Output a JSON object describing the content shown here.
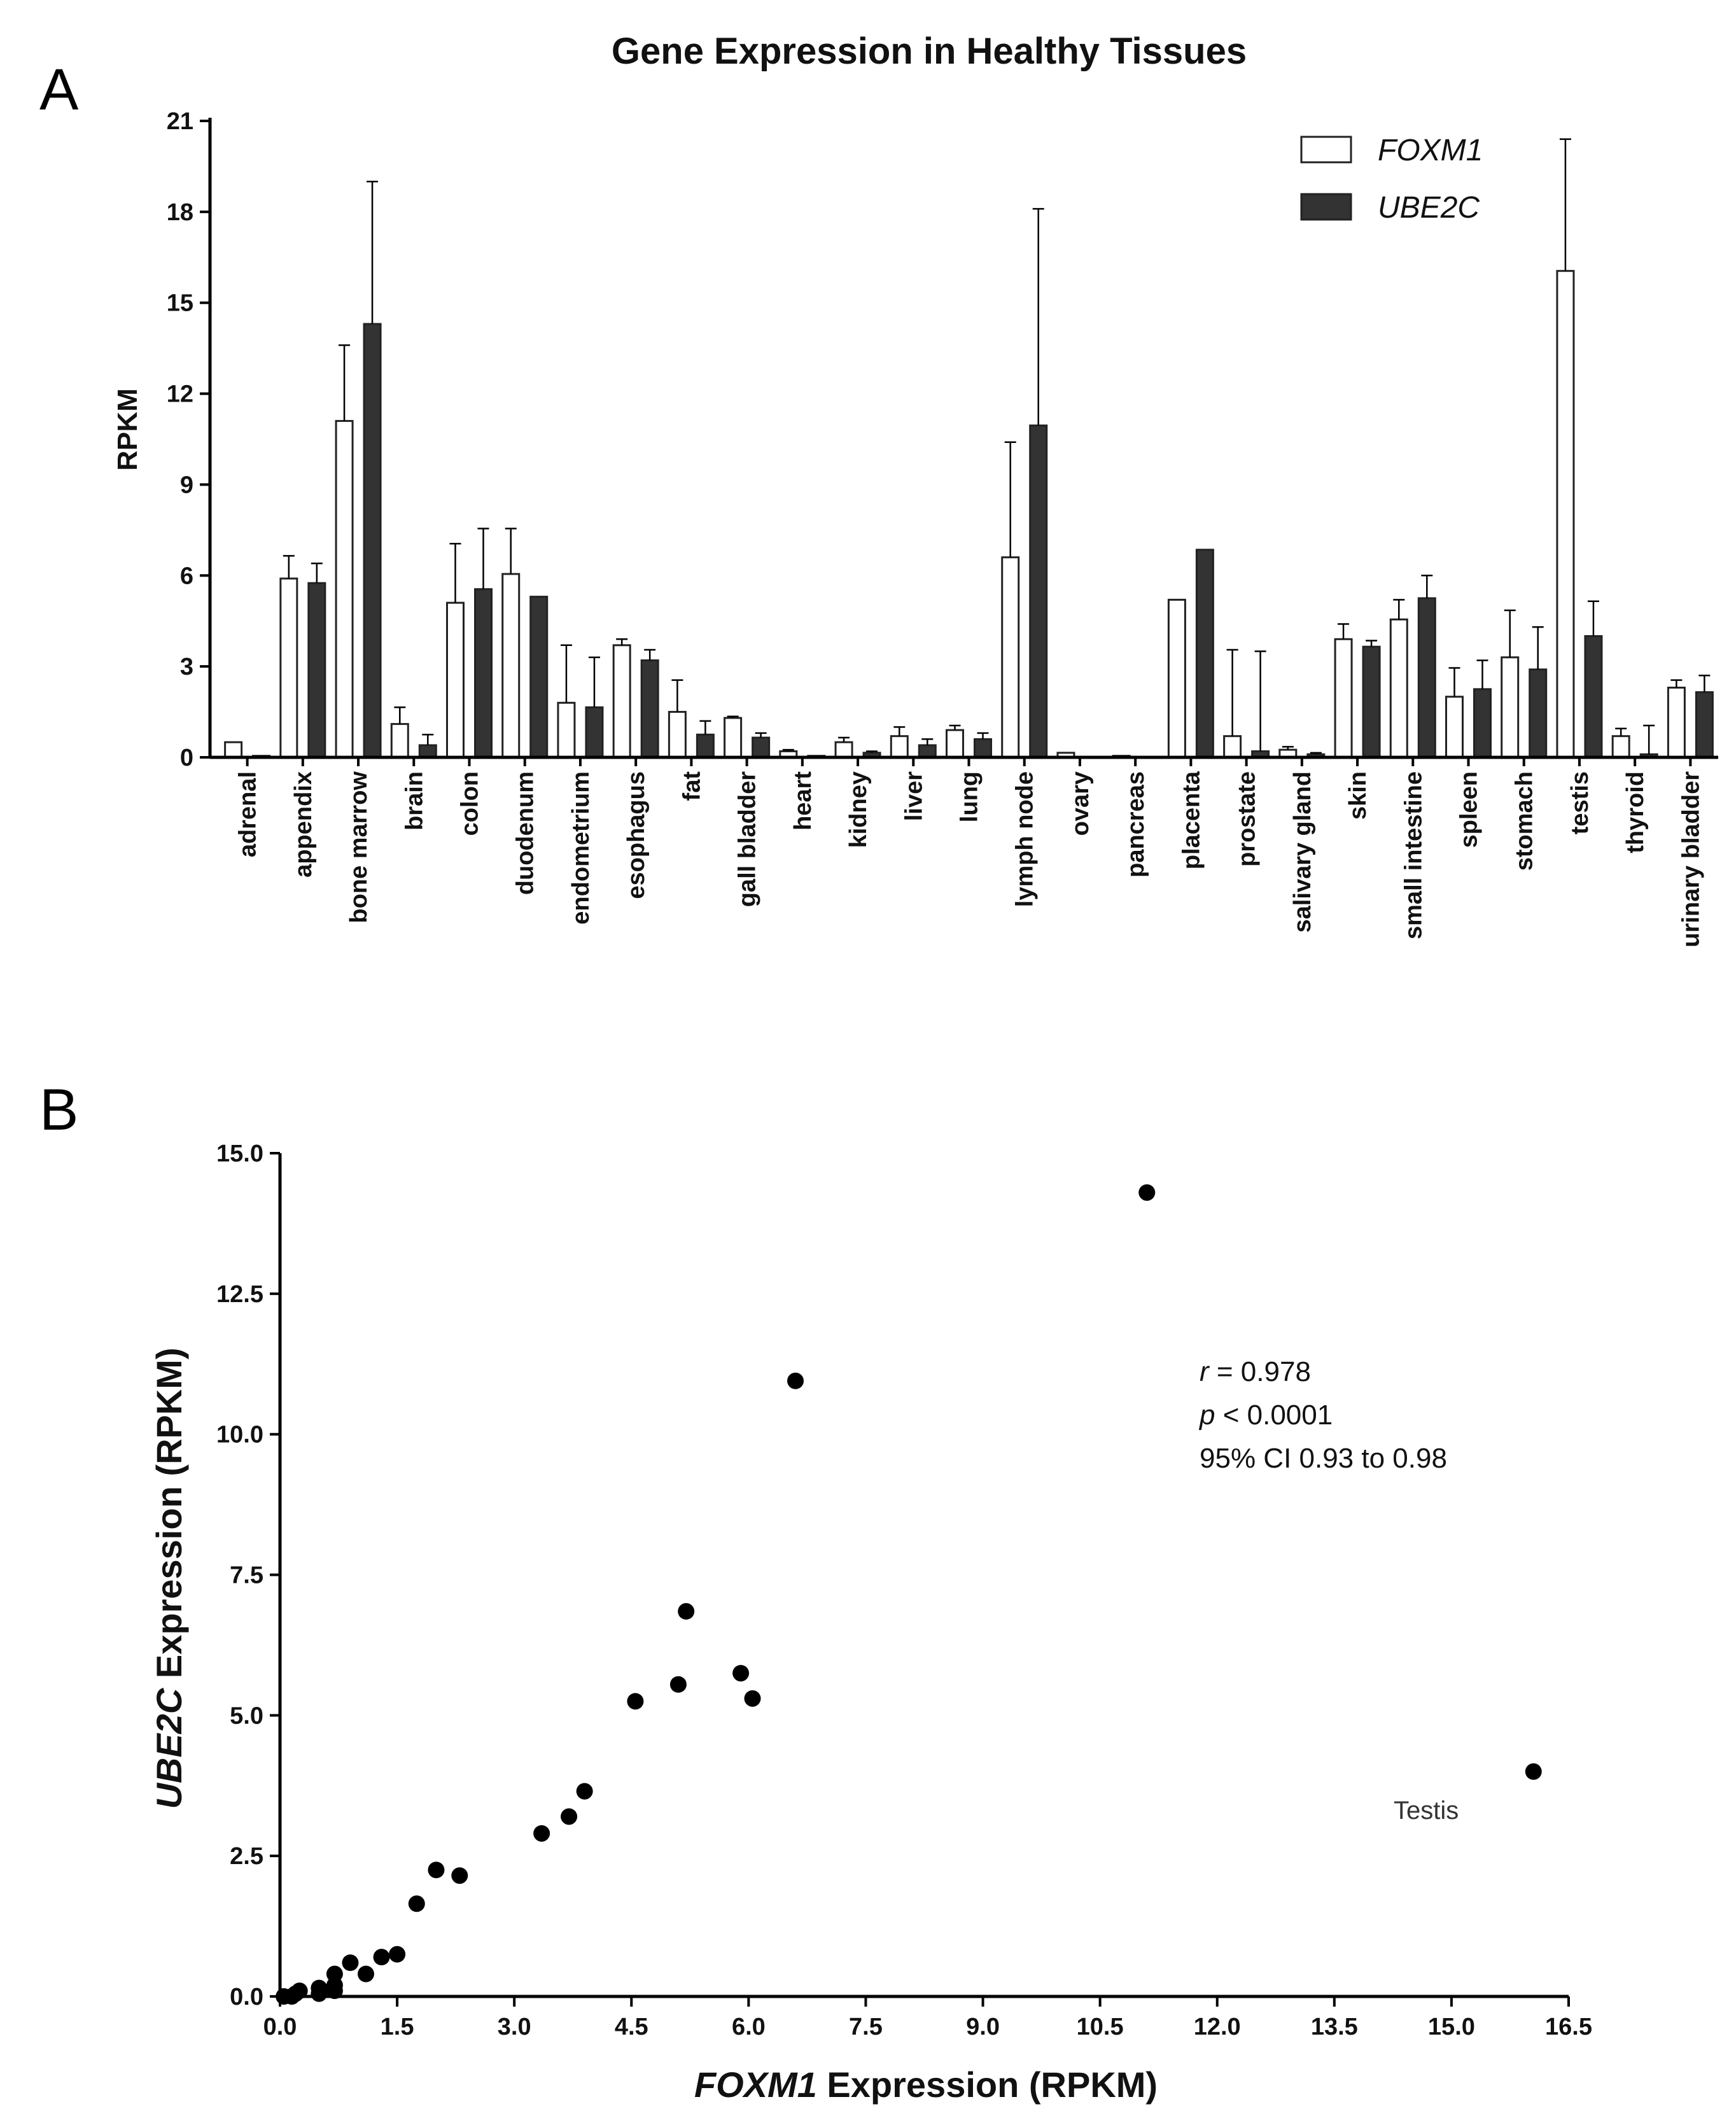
{
  "chart_data": [
    {
      "panel": "A",
      "type": "bar",
      "title": "Gene Expression in Healthy Tissues",
      "xlabel": "",
      "ylabel": "RPKM",
      "ylim": [
        0,
        21
      ],
      "yticks": [
        "0",
        "3",
        "6",
        "9",
        "12",
        "15",
        "18",
        "21"
      ],
      "legend_position": "top-right",
      "categories": [
        "adrenal",
        "appendix",
        "bone marrow",
        "brain",
        "colon",
        "duodenum",
        "endometrium",
        "esophagus",
        "fat",
        "gall bladder",
        "heart",
        "kidney",
        "liver",
        "lung",
        "lymph node",
        "ovary",
        "pancreas",
        "placenta",
        "prostate",
        "salivary gland",
        "skin",
        "small intestine",
        "spleen",
        "stomach",
        "testis",
        "thyroid",
        "urinary bladder"
      ],
      "series": [
        {
          "name": "FOXM1",
          "color": "#ffffff",
          "values": [
            0.5,
            5.9,
            11.1,
            1.1,
            5.1,
            6.05,
            1.8,
            3.7,
            1.5,
            1.3,
            0.2,
            0.5,
            0.7,
            0.9,
            6.6,
            0.15,
            0.05,
            5.2,
            0.7,
            0.25,
            3.9,
            4.55,
            2.0,
            3.3,
            16.05,
            0.7,
            2.3
          ],
          "errors": [
            0.0,
            0.75,
            2.5,
            0.55,
            1.95,
            1.5,
            1.9,
            0.2,
            1.05,
            0.05,
            0.05,
            0.15,
            0.3,
            0.15,
            3.8,
            0.0,
            0.0,
            0.0,
            2.85,
            0.1,
            0.5,
            0.65,
            0.95,
            1.55,
            4.35,
            0.25,
            0.25
          ]
        },
        {
          "name": "UBE2C",
          "color": "#333333",
          "values": [
            0.05,
            5.75,
            14.3,
            0.4,
            5.55,
            5.3,
            1.65,
            3.2,
            0.75,
            0.65,
            0.05,
            0.15,
            0.4,
            0.6,
            10.95,
            0.0,
            0.0,
            6.85,
            0.2,
            0.1,
            3.65,
            5.25,
            2.25,
            2.9,
            4.0,
            0.1,
            2.15
          ],
          "errors": [
            0.0,
            0.65,
            4.7,
            0.35,
            2.0,
            0.0,
            1.65,
            0.35,
            0.45,
            0.15,
            0.0,
            0.05,
            0.2,
            0.2,
            7.15,
            0.0,
            0.0,
            0.0,
            3.3,
            0.05,
            0.2,
            0.75,
            0.95,
            1.4,
            1.15,
            0.95,
            0.55
          ]
        }
      ]
    },
    {
      "panel": "B",
      "type": "scatter",
      "title": "",
      "xlabel_italic": "FOXM1",
      "xlabel_rest": " Expression (RPKM)",
      "ylabel_italic": "UBE2C",
      "ylabel_rest": " Expression (RPKM)",
      "xlim": [
        0,
        16.5
      ],
      "ylim": [
        0,
        15
      ],
      "xticks": [
        "0.0",
        "1.5",
        "3.0",
        "4.5",
        "6.0",
        "7.5",
        "9.0",
        "10.5",
        "12.0",
        "13.5",
        "15.0",
        "16.5"
      ],
      "yticks": [
        "0.0",
        "2.5",
        "5.0",
        "7.5",
        "10.0",
        "12.5",
        "15.0"
      ],
      "points": [
        {
          "x": 0.5,
          "y": 0.05
        },
        {
          "x": 5.9,
          "y": 5.75
        },
        {
          "x": 11.1,
          "y": 14.3
        },
        {
          "x": 1.1,
          "y": 0.4
        },
        {
          "x": 5.1,
          "y": 5.55
        },
        {
          "x": 6.05,
          "y": 5.3
        },
        {
          "x": 1.75,
          "y": 1.65
        },
        {
          "x": 3.7,
          "y": 3.2
        },
        {
          "x": 1.5,
          "y": 0.75
        },
        {
          "x": 1.3,
          "y": 0.7
        },
        {
          "x": 0.2,
          "y": 0.05
        },
        {
          "x": 0.5,
          "y": 0.15
        },
        {
          "x": 0.7,
          "y": 0.4
        },
        {
          "x": 0.9,
          "y": 0.6
        },
        {
          "x": 6.6,
          "y": 10.95
        },
        {
          "x": 0.15,
          "y": 0.0
        },
        {
          "x": 0.05,
          "y": 0.0
        },
        {
          "x": 5.2,
          "y": 6.85
        },
        {
          "x": 0.7,
          "y": 0.2
        },
        {
          "x": 0.25,
          "y": 0.1
        },
        {
          "x": 3.9,
          "y": 3.65
        },
        {
          "x": 4.55,
          "y": 5.25
        },
        {
          "x": 2.0,
          "y": 2.25
        },
        {
          "x": 3.35,
          "y": 2.9
        },
        {
          "x": 16.05,
          "y": 4.0
        },
        {
          "x": 0.7,
          "y": 0.1
        },
        {
          "x": 2.3,
          "y": 2.15
        }
      ],
      "stats": {
        "r_label": "r",
        "r_text": " = 0.978",
        "p_label": "p",
        "p_text": " < 0.0001",
        "ci_text": "95% CI 0.93 to 0.98"
      },
      "annotations": [
        {
          "text": "Testis"
        }
      ]
    }
  ]
}
